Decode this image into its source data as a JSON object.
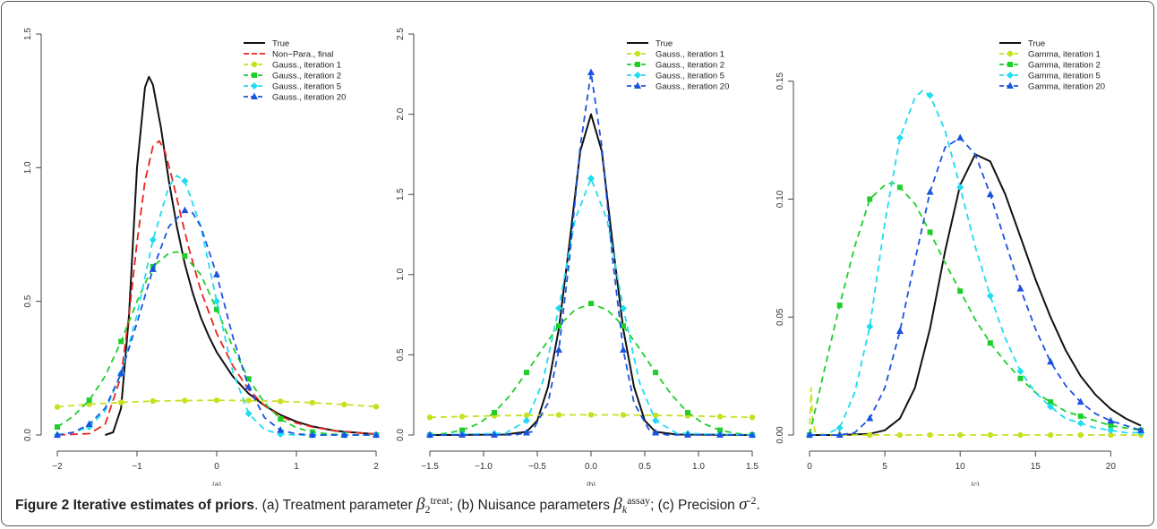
{
  "figure": {
    "label": "Figure 2",
    "title": "Iterative estimates of priors",
    "caption_a": ". (a) Treatment parameter",
    "caption_a_sym": "β",
    "caption_a_sub": "2",
    "caption_a_sup": "treat",
    "caption_b": "; (b) Nuisance parameters",
    "caption_b_sym": "β",
    "caption_b_sub": "k",
    "caption_b_sup": "assay",
    "caption_c": "; (c) Precision",
    "caption_c_sym": "σ",
    "caption_c_sup": "-2",
    "caption_end": "."
  },
  "chart_data": [
    {
      "type": "line",
      "panel_label": "(a)",
      "xlim": [
        -2,
        2
      ],
      "ylim": [
        0,
        1.5
      ],
      "xticks": [
        -2,
        -1,
        0,
        1,
        2
      ],
      "yticks": [
        0.0,
        0.5,
        1.0,
        1.5
      ],
      "xtick_labels": [
        "−2",
        "−1",
        "0",
        "1",
        "2"
      ],
      "ytick_labels": [
        "0.0",
        "0.5",
        "1.0",
        "1.5"
      ],
      "legend_position": "top-right",
      "series": [
        {
          "name": "True",
          "color": "#111111",
          "dash": "solid",
          "marker": "none",
          "x": [
            -1.4,
            -1.3,
            -1.2,
            -1.1,
            -1.0,
            -0.9,
            -0.85,
            -0.8,
            -0.7,
            -0.6,
            -0.5,
            -0.4,
            -0.3,
            -0.2,
            -0.1,
            0.0,
            0.2,
            0.4,
            0.6,
            0.8,
            1.0,
            1.2,
            1.5,
            2.0
          ],
          "y": [
            0.0,
            0.01,
            0.1,
            0.45,
            1.0,
            1.3,
            1.34,
            1.31,
            1.15,
            0.95,
            0.78,
            0.64,
            0.53,
            0.44,
            0.37,
            0.31,
            0.22,
            0.155,
            0.11,
            0.075,
            0.05,
            0.032,
            0.015,
            0.003
          ]
        },
        {
          "name": "Non−Para., final",
          "color": "#e8231f",
          "dash": "long",
          "marker": "none",
          "x": [
            -2.0,
            -1.6,
            -1.4,
            -1.2,
            -1.1,
            -1.0,
            -0.9,
            -0.8,
            -0.72,
            -0.65,
            -0.55,
            -0.45,
            -0.35,
            -0.2,
            0.0,
            0.2,
            0.4,
            0.6,
            0.8,
            1.0,
            1.2,
            1.5,
            2.0
          ],
          "y": [
            0.0,
            0.005,
            0.04,
            0.22,
            0.45,
            0.72,
            0.95,
            1.08,
            1.1,
            1.06,
            0.95,
            0.82,
            0.7,
            0.54,
            0.38,
            0.26,
            0.17,
            0.11,
            0.07,
            0.045,
            0.03,
            0.015,
            0.003
          ]
        },
        {
          "name": "Gauss., iteration 1",
          "color": "#c8e020",
          "dash": "medium",
          "marker": "circle",
          "x": [
            -2.0,
            -1.6,
            -1.2,
            -0.8,
            -0.4,
            0.0,
            0.4,
            0.8,
            1.2,
            1.6,
            2.0
          ],
          "y": [
            0.105,
            0.115,
            0.122,
            0.127,
            0.129,
            0.13,
            0.129,
            0.126,
            0.121,
            0.114,
            0.106
          ]
        },
        {
          "name": "Gauss., iteration 2",
          "color": "#1ecf2a",
          "dash": "medium",
          "marker": "square",
          "x": [
            -2.0,
            -1.8,
            -1.6,
            -1.4,
            -1.2,
            -1.0,
            -0.8,
            -0.6,
            -0.5,
            -0.4,
            -0.2,
            0.0,
            0.2,
            0.4,
            0.6,
            0.8,
            1.0,
            1.2,
            1.4,
            1.6,
            1.8,
            2.0
          ],
          "y": [
            0.03,
            0.07,
            0.13,
            0.22,
            0.35,
            0.5,
            0.63,
            0.68,
            0.685,
            0.67,
            0.6,
            0.47,
            0.33,
            0.21,
            0.12,
            0.06,
            0.027,
            0.011,
            0.004,
            0.001,
            0.0,
            0.0
          ],
          "marker_x": [
            -2.0,
            -1.6,
            -1.2,
            -0.8,
            -0.4,
            0.0,
            0.4,
            0.8,
            1.2,
            1.6,
            2.0
          ]
        },
        {
          "name": "Gauss., iteration 5",
          "color": "#1fdcf0",
          "dash": "medium",
          "marker": "diamond",
          "x": [
            -2.0,
            -1.8,
            -1.6,
            -1.4,
            -1.2,
            -1.0,
            -0.8,
            -0.6,
            -0.5,
            -0.4,
            -0.2,
            0.0,
            0.2,
            0.4,
            0.6,
            0.8,
            1.0,
            1.2,
            1.6,
            2.0
          ],
          "y": [
            0.0,
            0.01,
            0.03,
            0.09,
            0.23,
            0.45,
            0.73,
            0.93,
            0.97,
            0.95,
            0.78,
            0.5,
            0.24,
            0.08,
            0.02,
            0.003,
            0.0,
            0.0,
            0.0,
            0.0
          ],
          "marker_x": [
            -2.0,
            -1.6,
            -1.2,
            -0.8,
            -0.4,
            0.0,
            0.4,
            0.8,
            1.2,
            1.6,
            2.0
          ]
        },
        {
          "name": "Gauss., iteration 20",
          "color": "#1a53e0",
          "dash": "medium",
          "marker": "triangle",
          "x": [
            -2.0,
            -1.8,
            -1.6,
            -1.4,
            -1.2,
            -1.0,
            -0.8,
            -0.6,
            -0.4,
            -0.3,
            -0.2,
            0.0,
            0.2,
            0.4,
            0.6,
            0.8,
            1.0,
            1.2,
            1.6,
            2.0
          ],
          "y": [
            0.0,
            0.01,
            0.04,
            0.1,
            0.23,
            0.42,
            0.62,
            0.78,
            0.84,
            0.83,
            0.78,
            0.6,
            0.37,
            0.18,
            0.065,
            0.018,
            0.004,
            0.0,
            0.0,
            0.0
          ],
          "marker_x": [
            -2.0,
            -1.6,
            -1.2,
            -0.8,
            -0.4,
            0.0,
            0.4,
            0.8,
            1.2,
            1.6,
            2.0
          ]
        }
      ]
    },
    {
      "type": "line",
      "panel_label": "(b)",
      "xlim": [
        -1.5,
        1.5
      ],
      "ylim": [
        0,
        2.5
      ],
      "xticks": [
        -1.5,
        -1.0,
        -0.5,
        0.0,
        0.5,
        1.0,
        1.5
      ],
      "yticks": [
        0.0,
        0.5,
        1.0,
        1.5,
        2.0,
        2.5
      ],
      "xtick_labels": [
        "−1.5",
        "−1.0",
        "−0.5",
        "0.0",
        "0.5",
        "1.0",
        "1.5"
      ],
      "ytick_labels": [
        "0.0",
        "0.5",
        "1.0",
        "1.5",
        "2.0",
        "2.5"
      ],
      "legend_position": "top-right",
      "series": [
        {
          "name": "True",
          "color": "#111111",
          "dash": "solid",
          "marker": "none",
          "x": [
            -1.5,
            -0.8,
            -0.6,
            -0.5,
            -0.4,
            -0.3,
            -0.2,
            -0.1,
            0.0,
            0.1,
            0.2,
            0.3,
            0.4,
            0.5,
            0.6,
            0.8,
            1.5
          ],
          "y": [
            0.0,
            0.003,
            0.02,
            0.09,
            0.3,
            0.66,
            1.2,
            1.77,
            2.0,
            1.77,
            1.2,
            0.66,
            0.3,
            0.09,
            0.02,
            0.003,
            0.0
          ]
        },
        {
          "name": "Gauss., iteration 1",
          "color": "#c8e020",
          "dash": "medium",
          "marker": "circle",
          "x": [
            -1.5,
            -1.2,
            -0.9,
            -0.6,
            -0.3,
            0.0,
            0.3,
            0.6,
            0.9,
            1.2,
            1.5
          ],
          "y": [
            0.11,
            0.115,
            0.12,
            0.123,
            0.125,
            0.126,
            0.125,
            0.123,
            0.12,
            0.115,
            0.11
          ]
        },
        {
          "name": "Gauss., iteration 2",
          "color": "#1ecf2a",
          "dash": "medium",
          "marker": "square",
          "x": [
            -1.5,
            -1.35,
            -1.2,
            -1.05,
            -0.9,
            -0.75,
            -0.6,
            -0.45,
            -0.3,
            -0.15,
            0.0,
            0.15,
            0.3,
            0.45,
            0.6,
            0.75,
            0.9,
            1.05,
            1.2,
            1.35,
            1.5
          ],
          "y": [
            0.0,
            0.01,
            0.03,
            0.07,
            0.14,
            0.25,
            0.39,
            0.54,
            0.68,
            0.78,
            0.82,
            0.78,
            0.68,
            0.54,
            0.39,
            0.25,
            0.14,
            0.07,
            0.03,
            0.01,
            0.0
          ],
          "marker_x": [
            -1.5,
            -1.2,
            -0.9,
            -0.6,
            -0.3,
            0.0,
            0.3,
            0.6,
            0.9,
            1.2,
            1.5
          ]
        },
        {
          "name": "Gauss., iteration 5",
          "color": "#1fdcf0",
          "dash": "medium",
          "marker": "diamond",
          "x": [
            -1.5,
            -0.8,
            -0.6,
            -0.45,
            -0.3,
            -0.15,
            0.0,
            0.15,
            0.3,
            0.45,
            0.6,
            0.8,
            1.5
          ],
          "y": [
            0.0,
            0.01,
            0.09,
            0.33,
            0.79,
            1.34,
            1.6,
            1.34,
            0.79,
            0.33,
            0.09,
            0.01,
            0.0
          ],
          "marker_x": [
            -1.5,
            -1.2,
            -0.9,
            -0.6,
            -0.3,
            0.0,
            0.3,
            0.6,
            0.9,
            1.2,
            1.5
          ]
        },
        {
          "name": "Gauss., iteration 20",
          "color": "#1a53e0",
          "dash": "medium",
          "marker": "triangle",
          "x": [
            -1.5,
            -0.7,
            -0.55,
            -0.4,
            -0.3,
            -0.2,
            -0.1,
            0.0,
            0.1,
            0.2,
            0.3,
            0.4,
            0.55,
            0.7,
            1.5
          ],
          "y": [
            0.0,
            0.001,
            0.02,
            0.2,
            0.53,
            1.1,
            1.8,
            2.26,
            1.8,
            1.1,
            0.53,
            0.2,
            0.02,
            0.001,
            0.0
          ],
          "marker_x": [
            -1.5,
            -1.2,
            -0.9,
            -0.6,
            -0.3,
            0.0,
            0.3,
            0.6,
            0.9,
            1.2,
            1.5
          ]
        }
      ]
    },
    {
      "type": "line",
      "panel_label": "(c)",
      "xlim": [
        0,
        22
      ],
      "ylim": [
        0,
        0.17
      ],
      "xticks": [
        0,
        5,
        10,
        15,
        20
      ],
      "yticks": [
        0.0,
        0.05,
        0.1,
        0.15
      ],
      "xtick_labels": [
        "0",
        "5",
        "10",
        "15",
        "20"
      ],
      "ytick_labels": [
        "0.00",
        "0.05",
        "0.10",
        "0.15"
      ],
      "legend_position": "top-right",
      "series": [
        {
          "name": "True",
          "color": "#111111",
          "dash": "solid",
          "marker": "none",
          "x": [
            0,
            2,
            4,
            5,
            6,
            7,
            8,
            9,
            10,
            11,
            12,
            13,
            14,
            15,
            16,
            17,
            18,
            19,
            20,
            21,
            22
          ],
          "y": [
            0,
            0,
            0.0005,
            0.002,
            0.007,
            0.02,
            0.045,
            0.078,
            0.106,
            0.119,
            0.116,
            0.102,
            0.084,
            0.066,
            0.05,
            0.036,
            0.025,
            0.017,
            0.011,
            0.007,
            0.004
          ]
        },
        {
          "name": "Gamma, iteration 1",
          "color": "#c8e020",
          "dash": "medium",
          "marker": "circle",
          "x": [
            0,
            0.1,
            0.2,
            0.4,
            1,
            2,
            4,
            6,
            8,
            10,
            12,
            14,
            16,
            18,
            20,
            22
          ],
          "y": [
            0.0,
            0.02,
            0.006,
            0.001,
            0.0,
            0.0,
            0.0,
            0.0,
            0.0,
            0.0,
            0.0,
            0.0,
            0.0,
            0.0,
            0.0,
            0.0
          ],
          "marker_x": [
            0,
            2,
            4,
            6,
            8,
            10,
            12,
            14,
            16,
            18,
            20,
            22
          ]
        },
        {
          "name": "Gamma, iteration 2",
          "color": "#1ecf2a",
          "dash": "medium",
          "marker": "square",
          "x": [
            0,
            1,
            2,
            3,
            4,
            5,
            5.5,
            6,
            7,
            8,
            9,
            10,
            11,
            12,
            13,
            14,
            15,
            16,
            17,
            18,
            19,
            20,
            21,
            22
          ],
          "y": [
            0.0,
            0.028,
            0.055,
            0.08,
            0.1,
            0.106,
            0.107,
            0.105,
            0.098,
            0.086,
            0.073,
            0.061,
            0.049,
            0.039,
            0.031,
            0.024,
            0.018,
            0.014,
            0.01,
            0.008,
            0.006,
            0.004,
            0.003,
            0.002
          ],
          "marker_x": [
            0,
            2,
            4,
            6,
            8,
            10,
            12,
            14,
            16,
            18,
            20,
            22
          ]
        },
        {
          "name": "Gamma, iteration 5",
          "color": "#1fdcf0",
          "dash": "medium",
          "marker": "diamond",
          "x": [
            0,
            1,
            2,
            3,
            4,
            5,
            6,
            7,
            7.5,
            8,
            9,
            10,
            11,
            12,
            13,
            14,
            15,
            16,
            17,
            18,
            19,
            20,
            21,
            22
          ],
          "y": [
            0.0,
            0.0,
            0.003,
            0.018,
            0.046,
            0.09,
            0.126,
            0.143,
            0.146,
            0.144,
            0.129,
            0.105,
            0.08,
            0.059,
            0.041,
            0.027,
            0.018,
            0.012,
            0.007,
            0.005,
            0.003,
            0.002,
            0.001,
            0.001
          ],
          "marker_x": [
            0,
            2,
            4,
            6,
            8,
            10,
            12,
            14,
            16,
            18,
            20,
            22
          ]
        },
        {
          "name": "Gamma, iteration 20",
          "color": "#1a53e0",
          "dash": "medium",
          "marker": "triangle",
          "x": [
            0,
            2,
            3,
            4,
            5,
            6,
            7,
            8,
            9,
            10,
            11,
            12,
            13,
            14,
            15,
            16,
            17,
            18,
            19,
            20,
            21,
            22
          ],
          "y": [
            0.0,
            0.0,
            0.001,
            0.007,
            0.02,
            0.044,
            0.074,
            0.103,
            0.122,
            0.126,
            0.119,
            0.102,
            0.082,
            0.062,
            0.045,
            0.031,
            0.021,
            0.014,
            0.009,
            0.006,
            0.004,
            0.002
          ],
          "marker_x": [
            0,
            2,
            4,
            6,
            8,
            10,
            12,
            14,
            16,
            18,
            20,
            22
          ]
        }
      ]
    }
  ]
}
